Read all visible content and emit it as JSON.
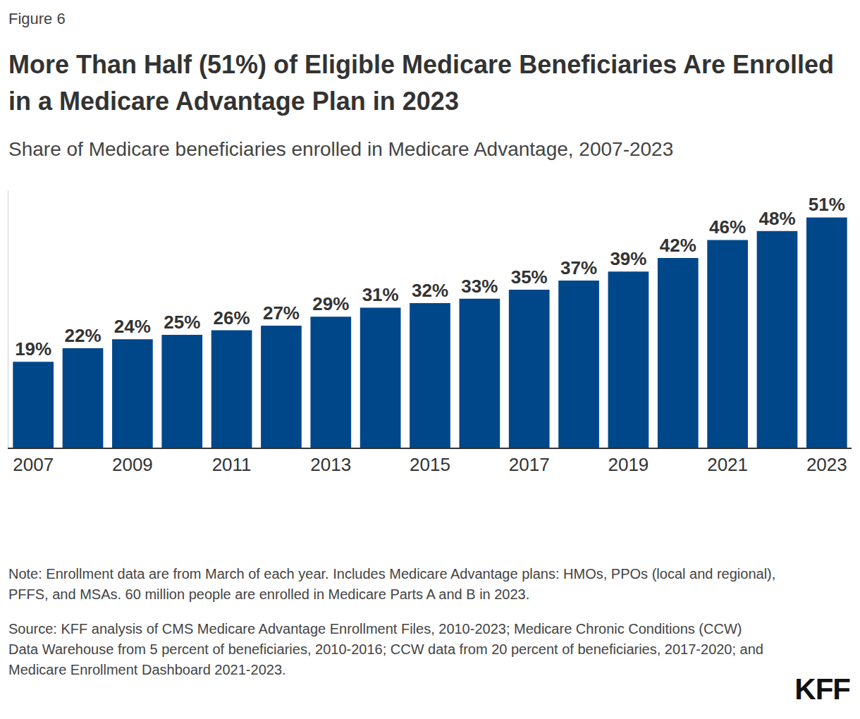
{
  "chart_data": {
    "type": "bar",
    "label": "Figure 6",
    "title": "More Than Half (51%) of Eligible Medicare Beneficiaries Are Enrolled in a Medicare Advantage Plan in 2023",
    "subtitle": "Share of Medicare beneficiaries enrolled in Medicare Advantage, 2007-2023",
    "categories": [
      "2007",
      null,
      "2009",
      null,
      "2011",
      null,
      "2013",
      null,
      "2015",
      null,
      "2017",
      null,
      "2019",
      null,
      "2021",
      null,
      "2023"
    ],
    "values": [
      19,
      22,
      24,
      25,
      26,
      27,
      29,
      31,
      32,
      33,
      35,
      37,
      39,
      42,
      46,
      48,
      51
    ],
    "value_labels": [
      "19%",
      "22%",
      "24%",
      "25%",
      "26%",
      "27%",
      "29%",
      "31%",
      "32%",
      "33%",
      "35%",
      "37%",
      "39%",
      "42%",
      "46%",
      "48%",
      "51%"
    ],
    "color": "#00478a",
    "ylim": [
      0,
      57
    ],
    "yticks": [],
    "grid": false,
    "data_labels": true,
    "tick_labels": "x",
    "note": "Note: Enrollment data are from March of each year. Includes Medicare Advantage plans: HMOs, PPOs (local and regional), PFFS, and MSAs. 60 million people are enrolled in Medicare Parts A and B in 2023.",
    "source": "Source: KFF analysis of CMS Medicare Advantage Enrollment Files, 2010-2023; Medicare Chronic Conditions (CCW) Data Warehouse from 5 percent of beneficiaries, 2010-2016; CCW data from 20 percent of beneficiaries, 2017-2020; and Medicare Enrollment Dashboard 2021-2023.",
    "logo": "KFF"
  }
}
